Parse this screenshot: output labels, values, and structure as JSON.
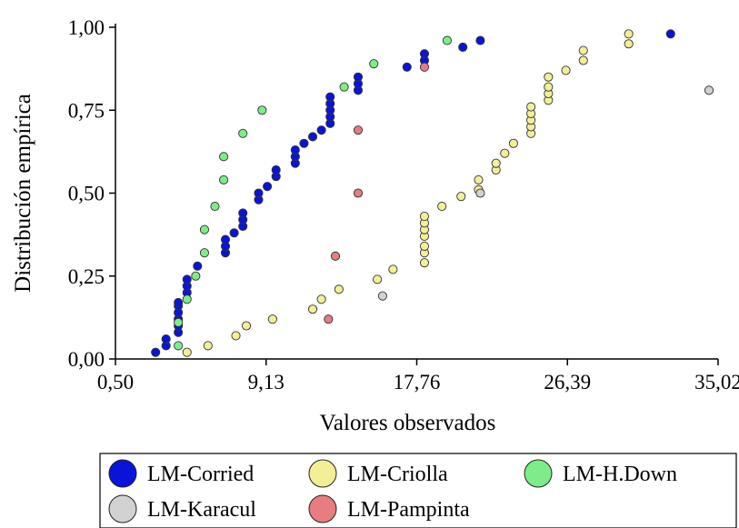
{
  "chart_data": {
    "type": "scatter",
    "xlabel": "Valores observados",
    "ylabel": "Distribución empírica",
    "xlim": [
      0.5,
      35.02
    ],
    "ylim": [
      0.0,
      1.0
    ],
    "x_ticks": [
      "0,50",
      "9,13",
      "17,76",
      "26,39",
      "35,02"
    ],
    "y_ticks": [
      "0,00",
      "0,25",
      "0,50",
      "0,75",
      "1,00"
    ],
    "grid": false,
    "legend_position": "bottom",
    "series": [
      {
        "name": "LM-Corried",
        "color": "#0a14d8",
        "points": [
          [
            2.8,
            0.02
          ],
          [
            3.4,
            0.04
          ],
          [
            3.4,
            0.06
          ],
          [
            4.1,
            0.08
          ],
          [
            4.1,
            0.1
          ],
          [
            4.1,
            0.12
          ],
          [
            4.1,
            0.14
          ],
          [
            4.1,
            0.16
          ],
          [
            4.1,
            0.17
          ],
          [
            4.6,
            0.2
          ],
          [
            4.6,
            0.22
          ],
          [
            4.6,
            0.24
          ],
          [
            5.2,
            0.28
          ],
          [
            6.8,
            0.32
          ],
          [
            6.8,
            0.34
          ],
          [
            6.8,
            0.36
          ],
          [
            7.3,
            0.38
          ],
          [
            7.8,
            0.4
          ],
          [
            7.8,
            0.42
          ],
          [
            7.8,
            0.44
          ],
          [
            8.7,
            0.48
          ],
          [
            8.7,
            0.5
          ],
          [
            9.2,
            0.52
          ],
          [
            9.7,
            0.55
          ],
          [
            9.7,
            0.57
          ],
          [
            10.8,
            0.59
          ],
          [
            10.8,
            0.61
          ],
          [
            10.8,
            0.63
          ],
          [
            11.3,
            0.65
          ],
          [
            11.8,
            0.67
          ],
          [
            12.3,
            0.69
          ],
          [
            12.8,
            0.71
          ],
          [
            12.8,
            0.73
          ],
          [
            12.8,
            0.75
          ],
          [
            12.8,
            0.77
          ],
          [
            12.8,
            0.79
          ],
          [
            14.4,
            0.81
          ],
          [
            14.4,
            0.83
          ],
          [
            14.4,
            0.85
          ],
          [
            17.2,
            0.88
          ],
          [
            18.2,
            0.9
          ],
          [
            18.2,
            0.92
          ],
          [
            20.4,
            0.94
          ],
          [
            21.4,
            0.96
          ],
          [
            32.3,
            0.98
          ]
        ]
      },
      {
        "name": "LM-Criolla",
        "color": "#f2ef96",
        "points": [
          [
            4.6,
            0.02
          ],
          [
            5.8,
            0.04
          ],
          [
            7.4,
            0.07
          ],
          [
            8.0,
            0.1
          ],
          [
            9.5,
            0.12
          ],
          [
            11.8,
            0.15
          ],
          [
            12.3,
            0.18
          ],
          [
            13.3,
            0.21
          ],
          [
            15.5,
            0.24
          ],
          [
            16.4,
            0.27
          ],
          [
            18.2,
            0.29
          ],
          [
            18.2,
            0.32
          ],
          [
            18.2,
            0.34
          ],
          [
            18.2,
            0.37
          ],
          [
            18.2,
            0.39
          ],
          [
            18.2,
            0.41
          ],
          [
            18.2,
            0.43
          ],
          [
            19.2,
            0.46
          ],
          [
            20.3,
            0.49
          ],
          [
            21.3,
            0.51
          ],
          [
            21.3,
            0.54
          ],
          [
            22.3,
            0.57
          ],
          [
            22.3,
            0.59
          ],
          [
            22.8,
            0.62
          ],
          [
            23.3,
            0.65
          ],
          [
            24.3,
            0.68
          ],
          [
            24.3,
            0.7
          ],
          [
            24.3,
            0.72
          ],
          [
            24.3,
            0.74
          ],
          [
            24.3,
            0.76
          ],
          [
            25.3,
            0.78
          ],
          [
            25.3,
            0.8
          ],
          [
            25.3,
            0.82
          ],
          [
            25.3,
            0.85
          ],
          [
            26.3,
            0.87
          ],
          [
            27.3,
            0.9
          ],
          [
            27.3,
            0.93
          ],
          [
            29.9,
            0.95
          ],
          [
            29.9,
            0.98
          ]
        ]
      },
      {
        "name": "LM-H.Down",
        "color": "#7ded8a",
        "points": [
          [
            4.1,
            0.04
          ],
          [
            4.6,
            0.18
          ],
          [
            5.1,
            0.25
          ],
          [
            5.6,
            0.32
          ],
          [
            5.6,
            0.39
          ],
          [
            6.2,
            0.46
          ],
          [
            6.7,
            0.54
          ],
          [
            6.7,
            0.61
          ],
          [
            7.8,
            0.68
          ],
          [
            8.9,
            0.75
          ],
          [
            13.6,
            0.82
          ],
          [
            15.3,
            0.89
          ],
          [
            19.5,
            0.96
          ],
          [
            4.1,
            0.11
          ]
        ]
      },
      {
        "name": "LM-Karacul",
        "color": "#d2d2d2",
        "points": [
          [
            15.8,
            0.19
          ],
          [
            21.4,
            0.5
          ],
          [
            34.5,
            0.81
          ]
        ]
      },
      {
        "name": "LM-Pampinta",
        "color": "#e77d80",
        "points": [
          [
            12.7,
            0.12
          ],
          [
            13.1,
            0.31
          ],
          [
            14.4,
            0.5
          ],
          [
            14.4,
            0.69
          ],
          [
            18.2,
            0.88
          ]
        ]
      }
    ],
    "legend": [
      "LM-Corried",
      "LM-Criolla",
      "LM-H.Down",
      "LM-Karacul",
      "LM-Pampinta"
    ]
  }
}
